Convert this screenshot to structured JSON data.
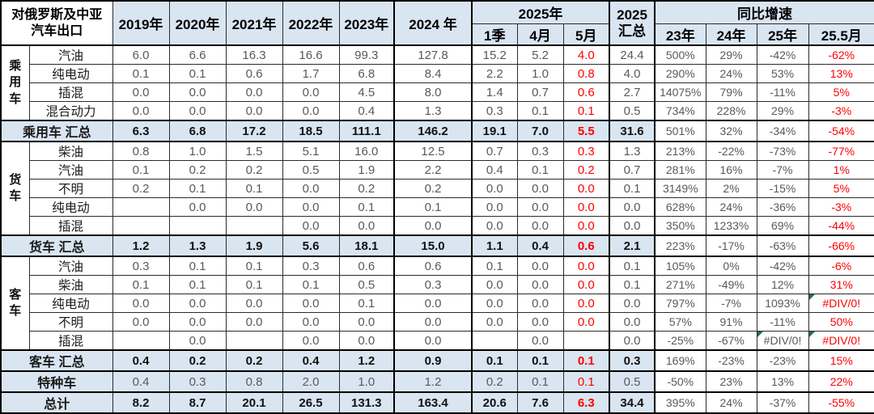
{
  "chart_data": {
    "type": "table",
    "title": "对俄罗斯及中亚汽车出口",
    "header": {
      "corner": "对俄罗斯及中亚\n汽车出口",
      "years": [
        "2019年",
        "2020年",
        "2021年",
        "2022年",
        "2023年",
        "2024 年"
      ],
      "group_2025": "2025年",
      "months_2025": [
        "1季",
        "4月",
        "5月"
      ],
      "total_2025": "2025\n汇总",
      "growth_group": "同比增速",
      "growth_cols": [
        "23年",
        "24年",
        "25年",
        "25.5月"
      ]
    },
    "columns": [
      "2019年",
      "2020年",
      "2021年",
      "2022年",
      "2023年",
      "2024 年",
      "2025年 1季",
      "2025年 4月",
      "2025年 5月",
      "2025 汇总",
      "同比增速 23年",
      "同比增速 24年",
      "同比增速 25年",
      "同比增速 25.5月"
    ],
    "rows": [
      {
        "group": "乘用车",
        "group_span": 4,
        "label": "汽油",
        "type": "data",
        "values": [
          "6.0",
          "6.6",
          "16.3",
          "16.6",
          "99.3",
          "127.8",
          "15.2",
          "5.2",
          "4.0",
          "24.4",
          "500%",
          "29%",
          "-42%",
          "-62%"
        ]
      },
      {
        "label": "纯电动",
        "type": "data",
        "values": [
          "0.1",
          "0.1",
          "0.6",
          "1.7",
          "6.8",
          "8.4",
          "2.2",
          "1.0",
          "0.8",
          "4.0",
          "290%",
          "24%",
          "53%",
          "13%"
        ]
      },
      {
        "label": "插混",
        "type": "data",
        "values": [
          "0.0",
          "0.0",
          "0.0",
          "0.0",
          "4.5",
          "8.0",
          "1.4",
          "0.7",
          "0.6",
          "2.7",
          "14075%",
          "79%",
          "-11%",
          "5%"
        ]
      },
      {
        "label": "混合动力",
        "type": "data",
        "values": [
          "0.0",
          "0.0",
          "0.0",
          "0.0",
          "0.4",
          "1.3",
          "0.3",
          "0.1",
          "0.1",
          "0.5",
          "734%",
          "228%",
          "29%",
          "-3%"
        ]
      },
      {
        "label": "乘用车 汇总",
        "type": "summary",
        "values": [
          "6.3",
          "6.8",
          "17.2",
          "18.5",
          "111.1",
          "146.2",
          "19.1",
          "7.0",
          "5.5",
          "31.6",
          "501%",
          "32%",
          "-34%",
          "-54%"
        ]
      },
      {
        "group": "货车",
        "group_span": 5,
        "label": "柴油",
        "type": "data",
        "values": [
          "0.8",
          "1.0",
          "1.5",
          "5.1",
          "16.0",
          "12.5",
          "0.7",
          "0.3",
          "0.3",
          "1.3",
          "213%",
          "-22%",
          "-73%",
          "-77%"
        ]
      },
      {
        "label": "汽油",
        "type": "data",
        "values": [
          "0.1",
          "0.2",
          "0.2",
          "0.5",
          "1.9",
          "2.2",
          "0.4",
          "0.1",
          "0.2",
          "0.7",
          "281%",
          "16%",
          "-7%",
          "1%"
        ]
      },
      {
        "label": "不明",
        "type": "data",
        "values": [
          "0.2",
          "0.1",
          "0.1",
          "0.0",
          "0.2",
          "0.2",
          "0.0",
          "0.0",
          "0.0",
          "0.1",
          "3149%",
          "2%",
          "-15%",
          "5%"
        ]
      },
      {
        "label": "纯电动",
        "type": "data",
        "values": [
          "",
          "0.0",
          "0.0",
          "0.0",
          "0.1",
          "0.1",
          "0.0",
          "0.0",
          "0.0",
          "0.0",
          "628%",
          "24%",
          "-36%",
          "-3%"
        ]
      },
      {
        "label": "插混",
        "type": "data",
        "values": [
          "",
          "",
          "",
          "0.0",
          "0.0",
          "0.0",
          "0.0",
          "0.0",
          "0.0",
          "0.0",
          "350%",
          "1233%",
          "69%",
          "-44%"
        ]
      },
      {
        "label": "货车 汇总",
        "type": "summary",
        "values": [
          "1.2",
          "1.3",
          "1.9",
          "5.6",
          "18.1",
          "15.0",
          "1.1",
          "0.4",
          "0.6",
          "2.1",
          "223%",
          "-17%",
          "-63%",
          "-66%"
        ]
      },
      {
        "group": "客车",
        "group_span": 5,
        "label": "汽油",
        "type": "data",
        "values": [
          "0.3",
          "0.1",
          "0.1",
          "0.3",
          "0.6",
          "0.6",
          "0.1",
          "0.0",
          "0.0",
          "0.1",
          "105%",
          "0%",
          "-42%",
          "-6%"
        ]
      },
      {
        "label": "柴油",
        "type": "data",
        "values": [
          "0.1",
          "0.1",
          "0.1",
          "0.1",
          "0.5",
          "0.3",
          "0.0",
          "0.0",
          "0.0",
          "0.1",
          "271%",
          "-49%",
          "12%",
          "31%"
        ]
      },
      {
        "label": "纯电动",
        "type": "data",
        "values": [
          "0.0",
          "0.0",
          "0.0",
          "0.0",
          "0.1",
          "0.0",
          "0.0",
          "0.0",
          "0.0",
          "0.0",
          "797%",
          "-7%",
          "1093%",
          "#DIV/0!"
        ]
      },
      {
        "label": "不明",
        "type": "data",
        "values": [
          "0.0",
          "0.0",
          "0.0",
          "0.0",
          "0.0",
          "0.0",
          "0.0",
          "0.0",
          "0.0",
          "0.0",
          "57%",
          "91%",
          "-11%",
          "50%"
        ]
      },
      {
        "label": "插混",
        "type": "data",
        "values": [
          "",
          "0.0",
          "",
          "0.0",
          "0.0",
          "0.0",
          "",
          "0.0",
          "",
          "0.0",
          "-25%",
          "-67%",
          "#DIV/0!",
          "#DIV/0!"
        ]
      },
      {
        "label": "客车 汇总",
        "type": "summary",
        "values": [
          "0.4",
          "0.2",
          "0.2",
          "0.4",
          "1.2",
          "0.9",
          "0.1",
          "0.1",
          "0.1",
          "0.3",
          "169%",
          "-23%",
          "-23%",
          "15%"
        ]
      },
      {
        "label": "特种车",
        "type": "summary-light",
        "values": [
          "0.4",
          "0.3",
          "0.8",
          "2.0",
          "1.0",
          "1.2",
          "0.2",
          "0.1",
          "0.1",
          "0.5",
          "-50%",
          "23%",
          "13%",
          "22%"
        ]
      },
      {
        "label": "总计",
        "type": "summary",
        "values": [
          "8.2",
          "8.7",
          "20.1",
          "26.5",
          "131.3",
          "163.4",
          "20.6",
          "7.6",
          "6.3",
          "34.4",
          "395%",
          "24%",
          "-37%",
          "-55%"
        ]
      }
    ],
    "styles": {
      "red_columns": [
        8,
        13
      ],
      "thick_left_columns": [
        5,
        6,
        9,
        10
      ],
      "error_cell_text": "#DIV/0!"
    },
    "colors": {
      "header_bg": "#d9e5f1",
      "summary_bg": "#d9e5f1",
      "red_text": "#ff0000",
      "value_text": "#595959",
      "error_triangle_green": "#1e7145",
      "border": "#000000"
    },
    "layout": {
      "grid": true,
      "legend": false
    }
  }
}
